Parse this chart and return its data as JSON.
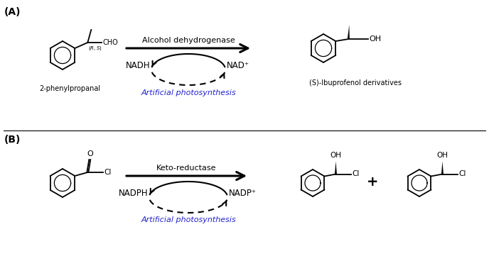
{
  "background_color": "#ffffff",
  "figsize": [
    6.88,
    3.68
  ],
  "dpi": 100,
  "panel_A_label": "(A)",
  "panel_B_label": "(B)",
  "enzyme_A": "Alcohol dehydrogenase",
  "enzyme_B": "Keto-reductase",
  "cofactor_A_left": "NADH",
  "cofactor_A_right": "NAD⁺",
  "cofactor_B_left": "NADPH",
  "cofactor_B_right": "NADP⁺",
  "photo_text": "Artificial photosynthesis",
  "substrate_A": "2-phenylpropanal",
  "product_A": "(S)-Ibuprofenol derivatives",
  "photo_color": "#2222cc",
  "line_color": "#000000"
}
